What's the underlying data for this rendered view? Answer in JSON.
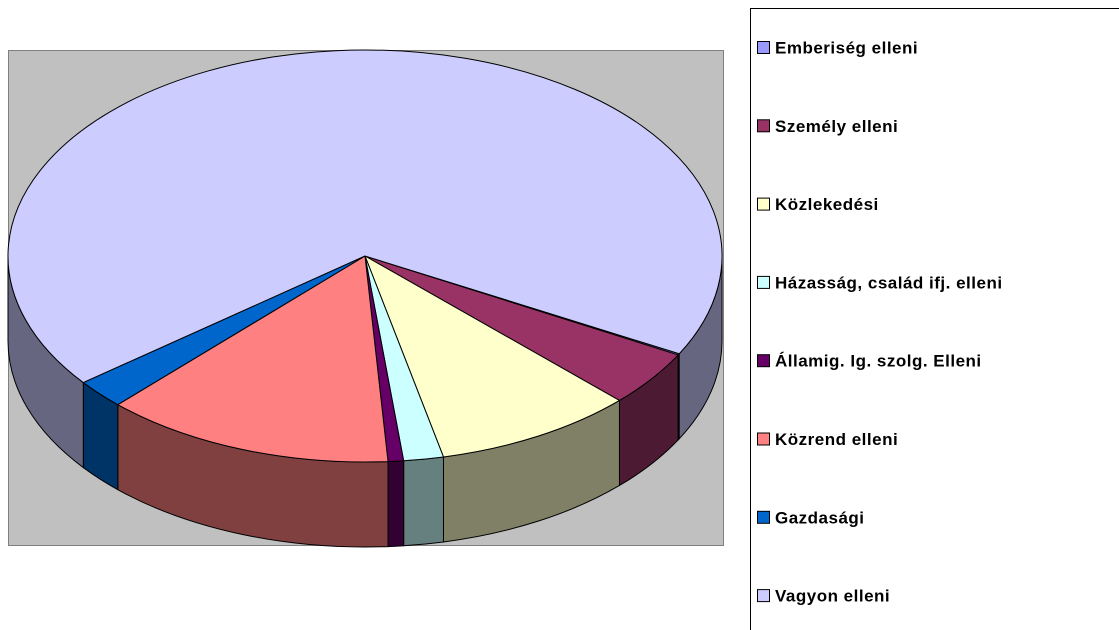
{
  "chart_data": {
    "type": "pie",
    "categories": [
      "Emberiség elleni",
      "Személy elleni",
      "Közlekedési",
      "Házasság, család ifj. elleni",
      "Államig. Ig. szolg. Elleni",
      "Közrend elleni",
      "Gazdasági",
      "Vagyon elleni"
    ],
    "values": [
      0.1,
      4.4,
      9.1,
      1.8,
      0.7,
      13.2,
      2.3,
      68.4
    ],
    "colors": [
      "#9999FF",
      "#993366",
      "#FFFFCC",
      "#CCFFFF",
      "#660066",
      "#FF8080",
      "#0066CC",
      "#CCCCFF"
    ],
    "legend": "right",
    "three_d": true
  }
}
